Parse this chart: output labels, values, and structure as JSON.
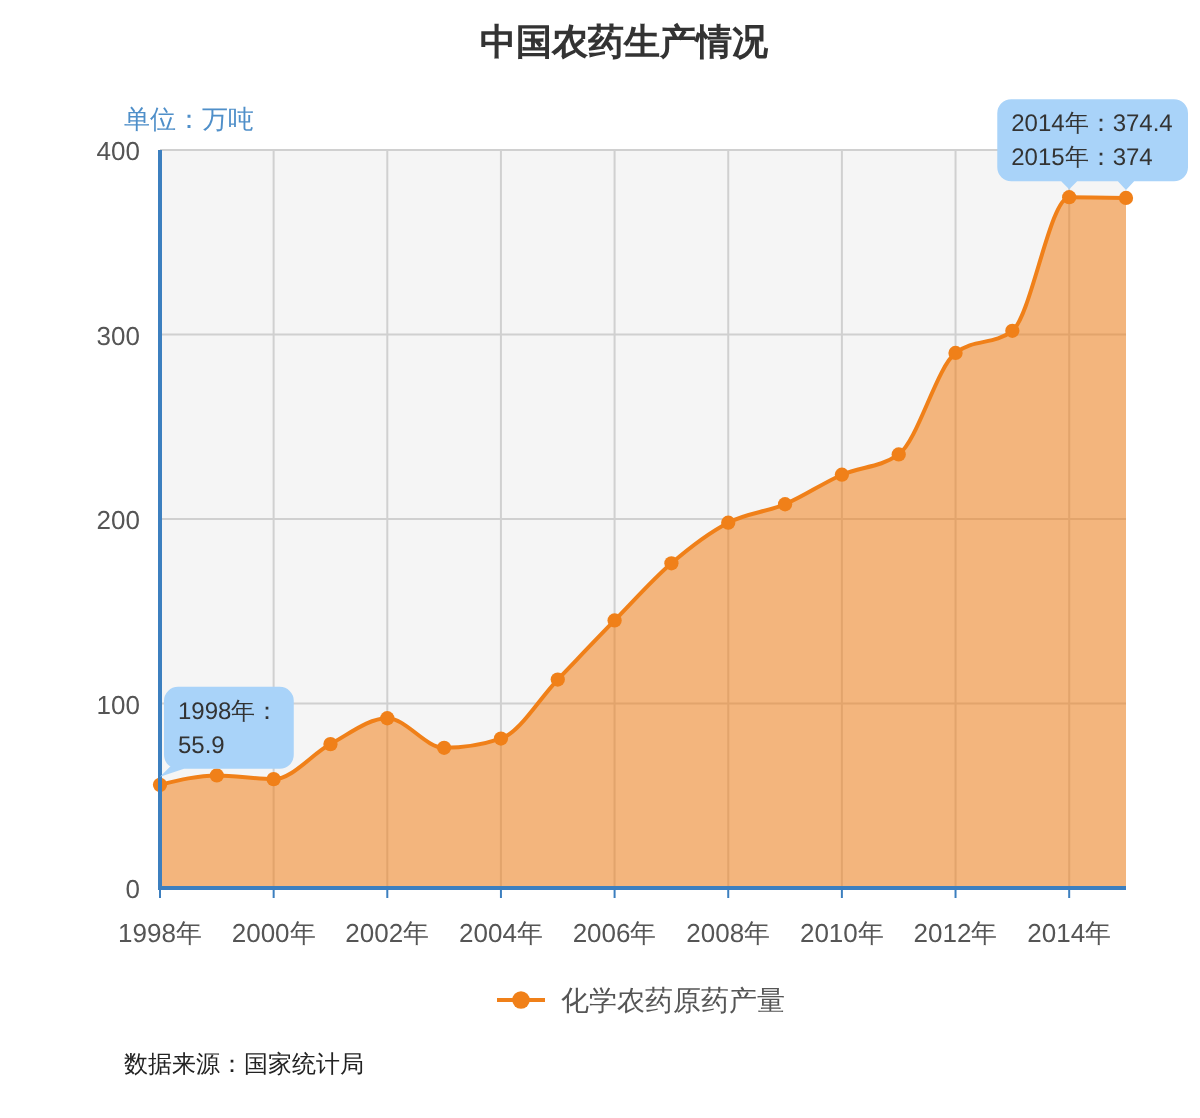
{
  "chart_data": {
    "type": "area",
    "title": "中国农药生产情况",
    "ylabel": "单位：万吨",
    "x": [
      1998,
      1999,
      2000,
      2001,
      2002,
      2003,
      2004,
      2005,
      2006,
      2007,
      2008,
      2009,
      2010,
      2011,
      2012,
      2013,
      2014,
      2015
    ],
    "series": [
      {
        "name": "化学农药原药产量",
        "color": "#f08019",
        "values": [
          55.9,
          61,
          59,
          78,
          92,
          76,
          81,
          113,
          145,
          176,
          198,
          208,
          224,
          235,
          290,
          302,
          374.4,
          374
        ]
      }
    ],
    "xlim": [
      1998,
      2015
    ],
    "xticks": [
      {
        "value": 1998,
        "label": "1998年"
      },
      {
        "value": 2000,
        "label": "2000年"
      },
      {
        "value": 2002,
        "label": "2002年"
      },
      {
        "value": 2004,
        "label": "2004年"
      },
      {
        "value": 2006,
        "label": "2006年"
      },
      {
        "value": 2008,
        "label": "2008年"
      },
      {
        "value": 2010,
        "label": "2010年"
      },
      {
        "value": 2012,
        "label": "2012年"
      },
      {
        "value": 2014,
        "label": "2014年"
      }
    ],
    "ylim": [
      0,
      400
    ],
    "yticks": [
      0,
      100,
      200,
      300,
      400
    ],
    "grid": true,
    "legend": "bottom",
    "marker": "circle",
    "annotations": [
      {
        "text": "1998年：55.9",
        "x": 1998,
        "y": 55.9
      },
      {
        "text": "2014年：374.4",
        "x": 2014,
        "y": 374.4
      },
      {
        "text": "2015年：374",
        "x": 2015,
        "y": 374
      },
      "数据来源：国家统计局"
    ]
  }
}
